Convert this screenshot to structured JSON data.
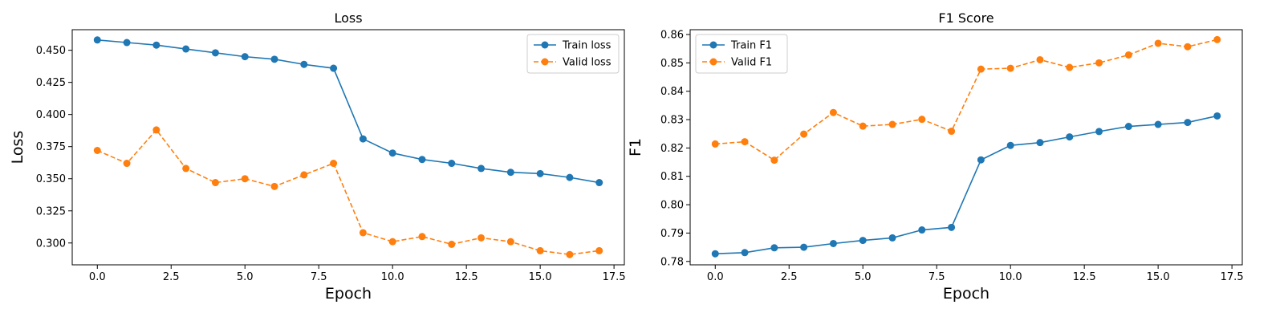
{
  "chart_data": [
    {
      "type": "line",
      "title": "Loss",
      "xlabel": "Epoch",
      "ylabel": "Loss",
      "xlim": [
        -0.85,
        17.85
      ],
      "ylim": [
        0.283,
        0.466
      ],
      "xticks": [
        0.0,
        2.5,
        5.0,
        7.5,
        10.0,
        12.5,
        15.0,
        17.5
      ],
      "xtick_labels": [
        "0.0",
        "2.5",
        "5.0",
        "7.5",
        "10.0",
        "12.5",
        "15.0",
        "17.5"
      ],
      "yticks": [
        0.3,
        0.325,
        0.35,
        0.375,
        0.4,
        0.425,
        0.45
      ],
      "ytick_labels": [
        "0.300",
        "0.325",
        "0.350",
        "0.375",
        "0.400",
        "0.425",
        "0.450"
      ],
      "grid": false,
      "legend_position": "top-right",
      "x": [
        0,
        1,
        2,
        3,
        4,
        5,
        6,
        7,
        8,
        9,
        10,
        11,
        12,
        13,
        14,
        15,
        16,
        17
      ],
      "series": [
        {
          "name": "Train loss",
          "color": "#1f77b4",
          "style": "solid",
          "values": [
            0.458,
            0.456,
            0.454,
            0.451,
            0.448,
            0.445,
            0.443,
            0.439,
            0.436,
            0.381,
            0.37,
            0.365,
            0.362,
            0.358,
            0.355,
            0.354,
            0.351,
            0.347
          ]
        },
        {
          "name": "Valid loss",
          "color": "#ff7f0e",
          "style": "dashed",
          "values": [
            0.372,
            0.362,
            0.388,
            0.358,
            0.347,
            0.35,
            0.344,
            0.353,
            0.362,
            0.308,
            0.301,
            0.305,
            0.299,
            0.304,
            0.301,
            0.294,
            0.291,
            0.294
          ]
        }
      ]
    },
    {
      "type": "line",
      "title": "F1 Score",
      "xlabel": "Epoch",
      "ylabel": "F1",
      "xlim": [
        -0.85,
        17.85
      ],
      "ylim": [
        0.7788,
        0.8617
      ],
      "xticks": [
        0.0,
        2.5,
        5.0,
        7.5,
        10.0,
        12.5,
        15.0,
        17.5
      ],
      "xtick_labels": [
        "0.0",
        "2.5",
        "5.0",
        "7.5",
        "10.0",
        "12.5",
        "15.0",
        "17.5"
      ],
      "yticks": [
        0.78,
        0.79,
        0.8,
        0.81,
        0.82,
        0.83,
        0.84,
        0.85,
        0.86
      ],
      "ytick_labels": [
        "0.78",
        "0.79",
        "0.80",
        "0.81",
        "0.82",
        "0.83",
        "0.84",
        "0.85",
        "0.86"
      ],
      "grid": false,
      "legend_position": "top-left",
      "x": [
        0,
        1,
        2,
        3,
        4,
        5,
        6,
        7,
        8,
        9,
        10,
        11,
        12,
        13,
        14,
        15,
        16,
        17
      ],
      "series": [
        {
          "name": "Train F1",
          "color": "#1f77b4",
          "style": "solid",
          "values": [
            0.7827,
            0.7831,
            0.7848,
            0.785,
            0.7863,
            0.7874,
            0.7883,
            0.7911,
            0.792,
            0.8158,
            0.8209,
            0.8219,
            0.8239,
            0.8258,
            0.8276,
            0.8283,
            0.829,
            0.8313
          ]
        },
        {
          "name": "Valid F1",
          "color": "#ff7f0e",
          "style": "dashed",
          "values": [
            0.8214,
            0.8222,
            0.8157,
            0.8249,
            0.8325,
            0.8277,
            0.8283,
            0.8301,
            0.8259,
            0.8478,
            0.8481,
            0.8511,
            0.8484,
            0.85,
            0.8528,
            0.8569,
            0.8557,
            0.8582
          ]
        }
      ]
    }
  ]
}
